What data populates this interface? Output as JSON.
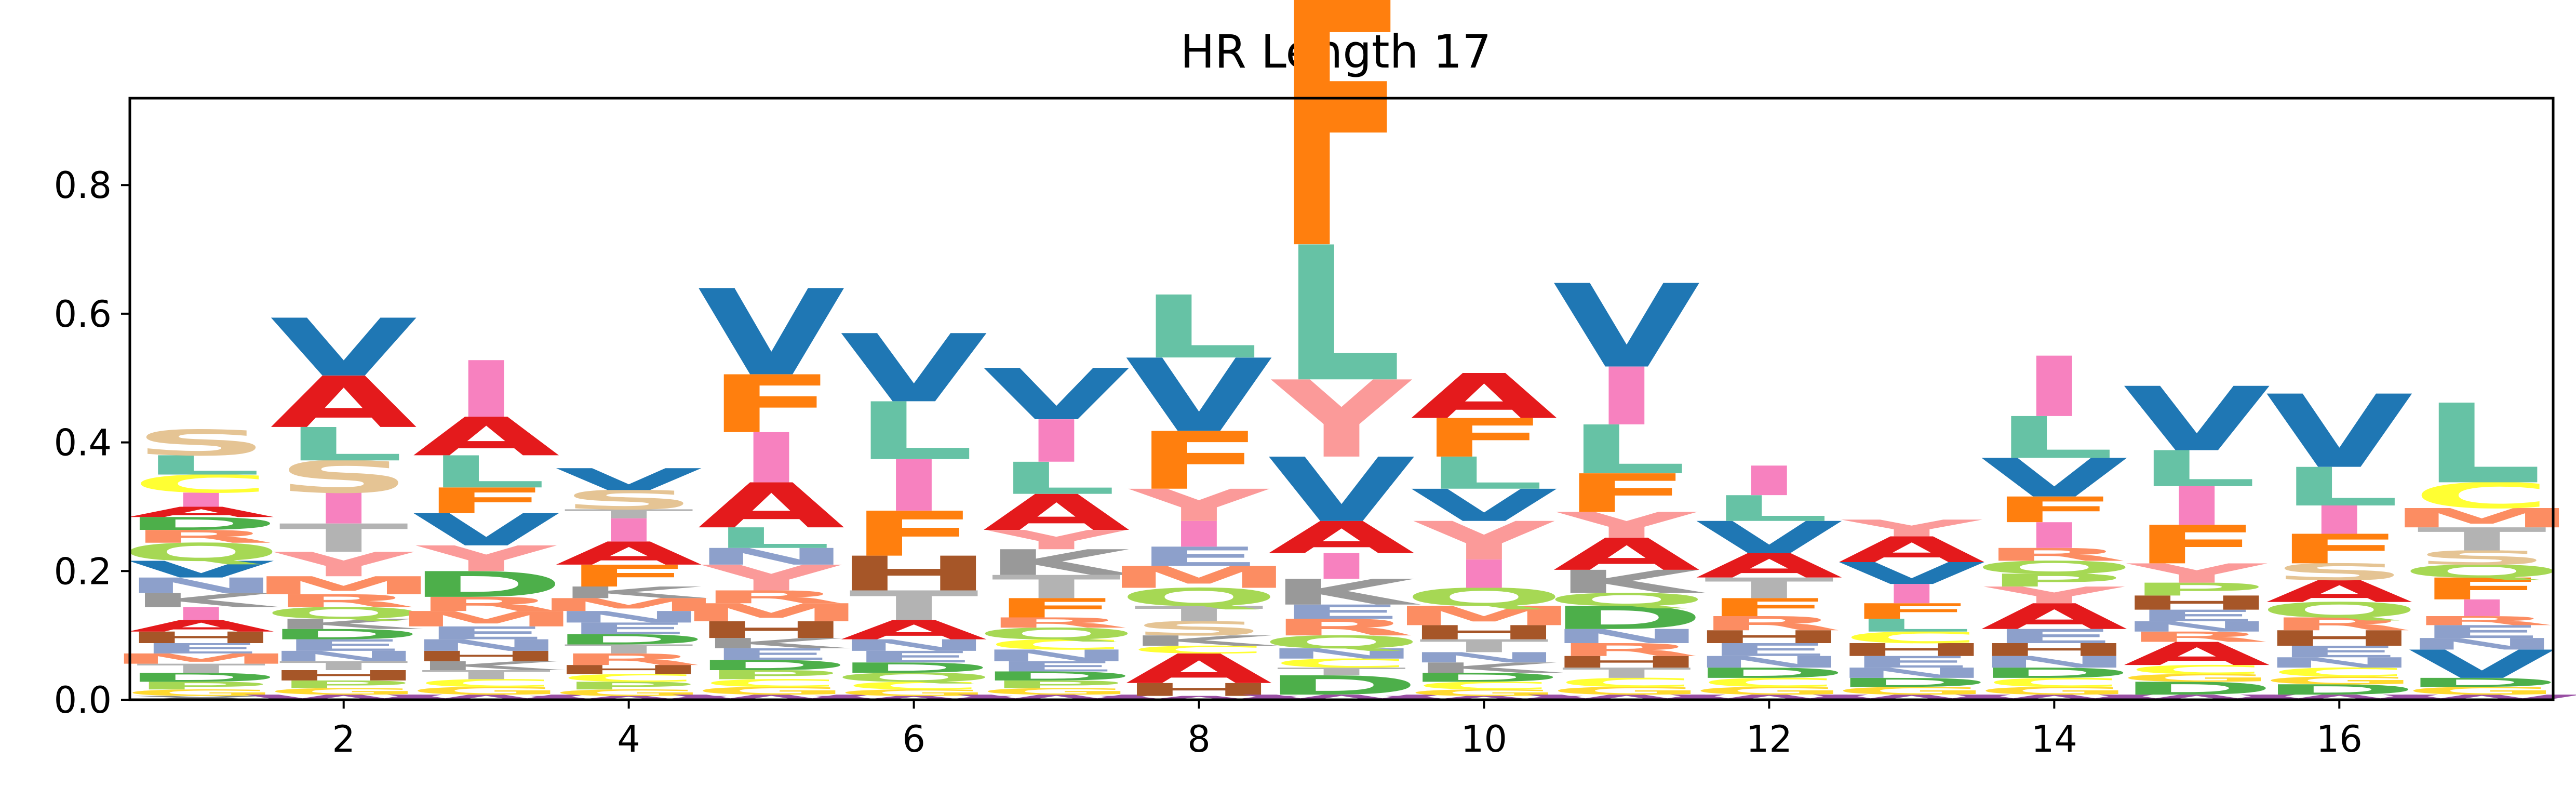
{
  "chart_data": {
    "type": "sequence-logo",
    "title": "HR Length 17",
    "xlabel": "",
    "ylabel": "",
    "xlim": [
      0.5,
      17.5
    ],
    "ylim": [
      0,
      0.935
    ],
    "xticks": [
      2,
      4,
      6,
      8,
      10,
      12,
      14,
      16
    ],
    "xtick_labels": [
      "2",
      "4",
      "6",
      "8",
      "10",
      "12",
      "14",
      "16"
    ],
    "yticks": [
      0.0,
      0.2,
      0.4,
      0.6,
      0.8
    ],
    "ytick_labels": [
      "0.0",
      "0.2",
      "0.4",
      "0.6",
      "0.8"
    ],
    "grid": false,
    "legend": false,
    "colors": {
      "V": "#1f77b4",
      "L": "#66c2a5",
      "F": "#ff7f0e",
      "A": "#e41a1c",
      "Y": "#fb9a99",
      "I": "#f781bf",
      "S": "#e5c494",
      "T": "#b3b3b3",
      "G": "#ffd92f",
      "P": "#a6d854",
      "D": "#4daf4a",
      "E": "#8da0cb",
      "N": "#8da0cb",
      "Q": "#a6d854",
      "K": "#999999",
      "R": "#fc8d62",
      "H": "#a65628",
      "M": "#fc8d62",
      "C": "#ffff33",
      "W": "#984ea3"
    },
    "positions": [
      {
        "pos": 1,
        "letters": [
          [
            "X",
            0.006
          ],
          [
            "G",
            0.01
          ],
          [
            "P",
            0.012
          ],
          [
            "D",
            0.014
          ],
          [
            "T",
            0.014
          ],
          [
            "M",
            0.016
          ],
          [
            "E",
            0.016
          ],
          [
            "H",
            0.018
          ],
          [
            "A",
            0.018
          ],
          [
            "I",
            0.02
          ],
          [
            "K",
            0.022
          ],
          [
            "N",
            0.024
          ],
          [
            "V",
            0.026
          ],
          [
            "Q",
            0.028
          ],
          [
            "R",
            0.02
          ],
          [
            "D",
            0.02
          ],
          [
            "A",
            0.016
          ],
          [
            "I",
            0.022
          ],
          [
            "C",
            0.028
          ],
          [
            "L",
            0.03
          ],
          [
            "S",
            0.04
          ]
        ]
      },
      {
        "pos": 2,
        "letters": [
          [
            "W",
            0.008
          ],
          [
            "G",
            0.01
          ],
          [
            "P",
            0.012
          ],
          [
            "H",
            0.016
          ],
          [
            "T",
            0.014
          ],
          [
            "N",
            0.016
          ],
          [
            "E",
            0.018
          ],
          [
            "D",
            0.016
          ],
          [
            "K",
            0.016
          ],
          [
            "Q",
            0.018
          ],
          [
            "R",
            0.02
          ],
          [
            "M",
            0.028
          ],
          [
            "Y",
            0.038
          ],
          [
            "T",
            0.044
          ],
          [
            "I",
            0.048
          ],
          [
            "S",
            0.05
          ],
          [
            "L",
            0.052
          ],
          [
            "A",
            0.08
          ],
          [
            "V",
            0.09
          ]
        ]
      },
      {
        "pos": 3,
        "letters": [
          [
            "W",
            0.008
          ],
          [
            "G",
            0.012
          ],
          [
            "C",
            0.012
          ],
          [
            "T",
            0.014
          ],
          [
            "K",
            0.014
          ],
          [
            "H",
            0.016
          ],
          [
            "N",
            0.018
          ],
          [
            "E",
            0.02
          ],
          [
            "M",
            0.024
          ],
          [
            "R",
            0.022
          ],
          [
            "D",
            0.04
          ],
          [
            "Y",
            0.04
          ],
          [
            "V",
            0.05
          ],
          [
            "F",
            0.04
          ],
          [
            "L",
            0.05
          ],
          [
            "A",
            0.06
          ],
          [
            "I",
            0.088
          ]
        ]
      },
      {
        "pos": 4,
        "letters": [
          [
            "W",
            0.006
          ],
          [
            "G",
            0.01
          ],
          [
            "P",
            0.012
          ],
          [
            "C",
            0.012
          ],
          [
            "H",
            0.014
          ],
          [
            "R",
            0.018
          ],
          [
            "T",
            0.014
          ],
          [
            "D",
            0.016
          ],
          [
            "E",
            0.018
          ],
          [
            "N",
            0.018
          ],
          [
            "M",
            0.02
          ],
          [
            "K",
            0.018
          ],
          [
            "F",
            0.034
          ],
          [
            "A",
            0.036
          ],
          [
            "I",
            0.036
          ],
          [
            "T",
            0.014
          ],
          [
            "S",
            0.03
          ],
          [
            "V",
            0.034
          ]
        ]
      },
      {
        "pos": 5,
        "letters": [
          [
            "W",
            0.008
          ],
          [
            "G",
            0.012
          ],
          [
            "C",
            0.012
          ],
          [
            "P",
            0.014
          ],
          [
            "D",
            0.016
          ],
          [
            "E",
            0.018
          ],
          [
            "K",
            0.016
          ],
          [
            "H",
            0.026
          ],
          [
            "M",
            0.028
          ],
          [
            "R",
            0.02
          ],
          [
            "Y",
            0.04
          ],
          [
            "N",
            0.026
          ],
          [
            "L",
            0.032
          ],
          [
            "A",
            0.07
          ],
          [
            "I",
            0.078
          ],
          [
            "F",
            0.09
          ],
          [
            "V",
            0.134
          ]
        ]
      },
      {
        "pos": 6,
        "letters": [
          [
            "W",
            0.006
          ],
          [
            "G",
            0.01
          ],
          [
            "C",
            0.012
          ],
          [
            "Q",
            0.014
          ],
          [
            "D",
            0.016
          ],
          [
            "E",
            0.018
          ],
          [
            "N",
            0.018
          ],
          [
            "A",
            0.03
          ],
          [
            "T",
            0.046
          ],
          [
            "H",
            0.054
          ],
          [
            "F",
            0.07
          ],
          [
            "I",
            0.08
          ],
          [
            "L",
            0.09
          ],
          [
            "V",
            0.106
          ]
        ]
      },
      {
        "pos": 7,
        "letters": [
          [
            "W",
            0.008
          ],
          [
            "G",
            0.01
          ],
          [
            "P",
            0.012
          ],
          [
            "D",
            0.014
          ],
          [
            "E",
            0.016
          ],
          [
            "N",
            0.018
          ],
          [
            "C",
            0.016
          ],
          [
            "Q",
            0.018
          ],
          [
            "R",
            0.016
          ],
          [
            "F",
            0.03
          ],
          [
            "T",
            0.036
          ],
          [
            "K",
            0.04
          ],
          [
            "Y",
            0.03
          ],
          [
            "A",
            0.056
          ],
          [
            "L",
            0.05
          ],
          [
            "I",
            0.066
          ],
          [
            "V",
            0.08
          ]
        ]
      },
      {
        "pos": 8,
        "letters": [
          [
            "W",
            0.006
          ],
          [
            "H",
            0.02
          ],
          [
            "A",
            0.046
          ],
          [
            "C",
            0.012
          ],
          [
            "K",
            0.016
          ],
          [
            "S",
            0.022
          ],
          [
            "T",
            0.024
          ],
          [
            "Q",
            0.028
          ],
          [
            "M",
            0.034
          ],
          [
            "E",
            0.03
          ],
          [
            "I",
            0.04
          ],
          [
            "Y",
            0.05
          ],
          [
            "F",
            0.09
          ],
          [
            "V",
            0.114
          ],
          [
            "L",
            0.098
          ]
        ]
      },
      {
        "pos": 9,
        "letters": [
          [
            "W",
            0.008
          ],
          [
            "D",
            0.03
          ],
          [
            "T",
            0.012
          ],
          [
            "C",
            0.014
          ],
          [
            "N",
            0.016
          ],
          [
            "Q",
            0.02
          ],
          [
            "R",
            0.026
          ],
          [
            "E",
            0.022
          ],
          [
            "K",
            0.04
          ],
          [
            "I",
            0.04
          ],
          [
            "A",
            0.05
          ],
          [
            "V",
            0.1
          ],
          [
            "Y",
            0.12
          ],
          [
            "L",
            0.21
          ],
          [
            "F",
            0.41
          ]
        ]
      },
      {
        "pos": 10,
        "letters": [
          [
            "W",
            0.006
          ],
          [
            "G",
            0.01
          ],
          [
            "C",
            0.012
          ],
          [
            "D",
            0.014
          ],
          [
            "K",
            0.016
          ],
          [
            "N",
            0.016
          ],
          [
            "T",
            0.02
          ],
          [
            "H",
            0.022
          ],
          [
            "M",
            0.03
          ],
          [
            "Q",
            0.028
          ],
          [
            "I",
            0.044
          ],
          [
            "Y",
            0.06
          ],
          [
            "V",
            0.05
          ],
          [
            "L",
            0.05
          ],
          [
            "F",
            0.06
          ],
          [
            "A",
            0.07
          ]
        ]
      },
      {
        "pos": 11,
        "letters": [
          [
            "W",
            0.008
          ],
          [
            "G",
            0.012
          ],
          [
            "C",
            0.014
          ],
          [
            "T",
            0.016
          ],
          [
            "H",
            0.018
          ],
          [
            "R",
            0.02
          ],
          [
            "N",
            0.022
          ],
          [
            "D",
            0.036
          ],
          [
            "Q",
            0.02
          ],
          [
            "K",
            0.036
          ],
          [
            "A",
            0.05
          ],
          [
            "Y",
            0.04
          ],
          [
            "F",
            0.06
          ],
          [
            "L",
            0.076
          ],
          [
            "I",
            0.09
          ],
          [
            "V",
            0.13
          ]
        ]
      },
      {
        "pos": 12,
        "letters": [
          [
            "W",
            0.008
          ],
          [
            "G",
            0.012
          ],
          [
            "C",
            0.014
          ],
          [
            "D",
            0.016
          ],
          [
            "N",
            0.018
          ],
          [
            "E",
            0.02
          ],
          [
            "H",
            0.02
          ],
          [
            "R",
            0.022
          ],
          [
            "F",
            0.028
          ],
          [
            "T",
            0.032
          ],
          [
            "A",
            0.038
          ],
          [
            "V",
            0.05
          ],
          [
            "L",
            0.04
          ],
          [
            "I",
            0.046
          ]
        ]
      },
      {
        "pos": 13,
        "letters": [
          [
            "W",
            0.008
          ],
          [
            "G",
            0.012
          ],
          [
            "D",
            0.014
          ],
          [
            "N",
            0.016
          ],
          [
            "E",
            0.018
          ],
          [
            "H",
            0.02
          ],
          [
            "C",
            0.018
          ],
          [
            "L",
            0.02
          ],
          [
            "F",
            0.024
          ],
          [
            "I",
            0.03
          ],
          [
            "V",
            0.034
          ],
          [
            "A",
            0.04
          ],
          [
            "Y",
            0.026
          ]
        ]
      },
      {
        "pos": 14,
        "letters": [
          [
            "W",
            0.008
          ],
          [
            "G",
            0.012
          ],
          [
            "C",
            0.014
          ],
          [
            "D",
            0.016
          ],
          [
            "N",
            0.018
          ],
          [
            "H",
            0.02
          ],
          [
            "E",
            0.022
          ],
          [
            "A",
            0.04
          ],
          [
            "Y",
            0.026
          ],
          [
            "P",
            0.02
          ],
          [
            "Q",
            0.02
          ],
          [
            "R",
            0.02
          ],
          [
            "I",
            0.04
          ],
          [
            "F",
            0.04
          ],
          [
            "V",
            0.06
          ],
          [
            "L",
            0.065
          ],
          [
            "I",
            0.094
          ]
        ]
      },
      {
        "pos": 15,
        "letters": [
          [
            "W",
            0.008
          ],
          [
            "D",
            0.02
          ],
          [
            "G",
            0.012
          ],
          [
            "C",
            0.014
          ],
          [
            "A",
            0.036
          ],
          [
            "R",
            0.016
          ],
          [
            "N",
            0.016
          ],
          [
            "E",
            0.018
          ],
          [
            "H",
            0.022
          ],
          [
            "P",
            0.02
          ],
          [
            "Y",
            0.03
          ],
          [
            "F",
            0.06
          ],
          [
            "I",
            0.06
          ],
          [
            "L",
            0.056
          ],
          [
            "V",
            0.1
          ]
        ]
      },
      {
        "pos": 16,
        "letters": [
          [
            "W",
            0.008
          ],
          [
            "D",
            0.016
          ],
          [
            "G",
            0.012
          ],
          [
            "C",
            0.014
          ],
          [
            "N",
            0.016
          ],
          [
            "E",
            0.018
          ],
          [
            "H",
            0.024
          ],
          [
            "R",
            0.02
          ],
          [
            "Q",
            0.024
          ],
          [
            "A",
            0.034
          ],
          [
            "S",
            0.026
          ],
          [
            "F",
            0.046
          ],
          [
            "I",
            0.044
          ],
          [
            "L",
            0.06
          ],
          [
            "V",
            0.114
          ]
        ]
      },
      {
        "pos": 17,
        "letters": [
          [
            "W",
            0.008
          ],
          [
            "G",
            0.012
          ],
          [
            "D",
            0.014
          ],
          [
            "V",
            0.044
          ],
          [
            "N",
            0.018
          ],
          [
            "E",
            0.02
          ],
          [
            "R",
            0.014
          ],
          [
            "I",
            0.026
          ],
          [
            "F",
            0.034
          ],
          [
            "Q",
            0.02
          ],
          [
            "S",
            0.022
          ],
          [
            "T",
            0.036
          ],
          [
            "M",
            0.03
          ],
          [
            "C",
            0.04
          ],
          [
            "L",
            0.124
          ]
        ]
      }
    ]
  }
}
